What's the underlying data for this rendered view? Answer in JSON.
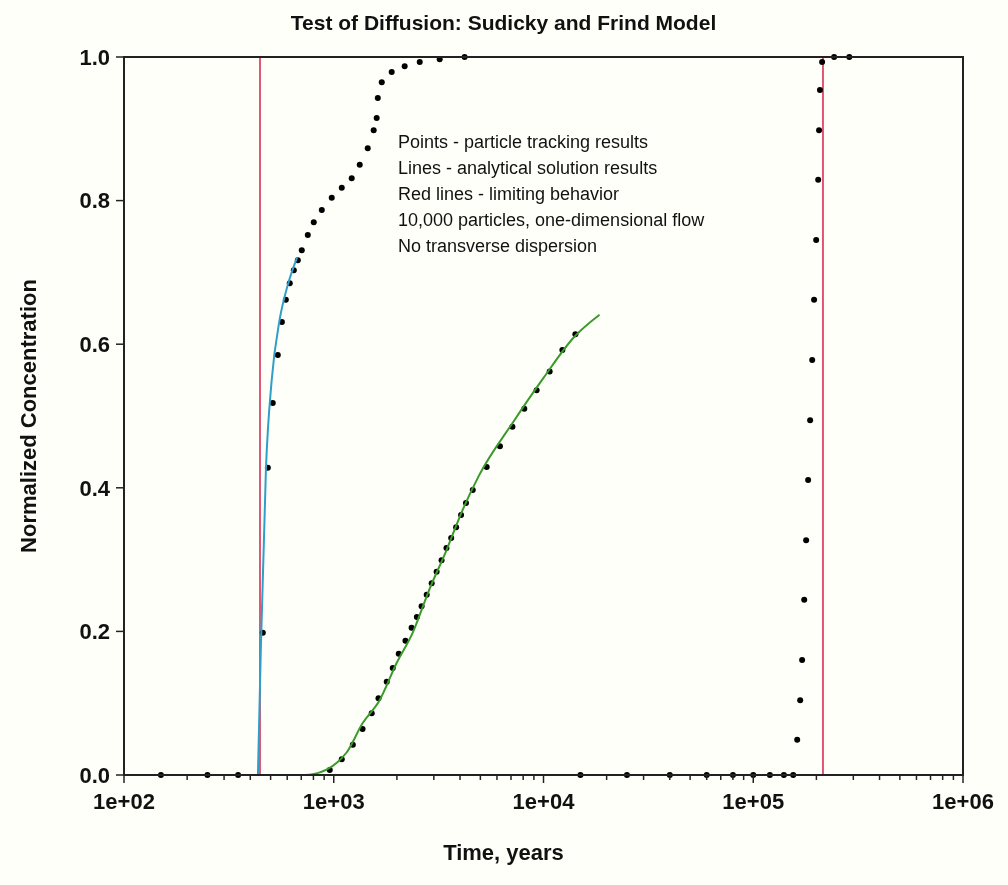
{
  "chart_data": {
    "type": "scatter",
    "title": "Test of Diffusion: Sudicky and Frind Model",
    "xlabel": "Time, years",
    "ylabel": "Normalized Concentration",
    "log": "x",
    "grid": false,
    "marker": "circle",
    "xlim": [
      100,
      1000000
    ],
    "ylim": [
      0,
      1
    ],
    "xticks": [
      {
        "value": 100,
        "label": "1e+02"
      },
      {
        "value": 200,
        "label": null
      },
      {
        "value": 300,
        "label": null
      },
      {
        "value": 400,
        "label": null
      },
      {
        "value": 500,
        "label": null
      },
      {
        "value": 600,
        "label": null
      },
      {
        "value": 700,
        "label": null
      },
      {
        "value": 800,
        "label": null
      },
      {
        "value": 900,
        "label": null
      },
      {
        "value": 1000,
        "label": "1e+03"
      },
      {
        "value": 2000,
        "label": null
      },
      {
        "value": 3000,
        "label": null
      },
      {
        "value": 4000,
        "label": null
      },
      {
        "value": 5000,
        "label": null
      },
      {
        "value": 6000,
        "label": null
      },
      {
        "value": 7000,
        "label": null
      },
      {
        "value": 8000,
        "label": null
      },
      {
        "value": 9000,
        "label": null
      },
      {
        "value": 10000,
        "label": "1e+04"
      },
      {
        "value": 20000,
        "label": null
      },
      {
        "value": 30000,
        "label": null
      },
      {
        "value": 40000,
        "label": null
      },
      {
        "value": 50000,
        "label": null
      },
      {
        "value": 60000,
        "label": null
      },
      {
        "value": 70000,
        "label": null
      },
      {
        "value": 80000,
        "label": null
      },
      {
        "value": 90000,
        "label": null
      },
      {
        "value": 100000,
        "label": "1e+05"
      },
      {
        "value": 200000,
        "label": null
      },
      {
        "value": 300000,
        "label": null
      },
      {
        "value": 400000,
        "label": null
      },
      {
        "value": 500000,
        "label": null
      },
      {
        "value": 600000,
        "label": null
      },
      {
        "value": 700000,
        "label": null
      },
      {
        "value": 800000,
        "label": null
      },
      {
        "value": 900000,
        "label": null
      },
      {
        "value": 1000000,
        "label": "1e+06"
      }
    ],
    "yticks": [
      {
        "value": 0,
        "label": "0.0"
      },
      {
        "value": 0.2,
        "label": "0.2"
      },
      {
        "value": 0.4,
        "label": "0.4"
      },
      {
        "value": 0.6,
        "label": "0.6"
      },
      {
        "value": 0.8,
        "label": "0.8"
      },
      {
        "value": 1,
        "label": "1.0"
      }
    ],
    "series": [
      {
        "color": "#000000",
        "x": [
          150,
          250,
          350,
          459,
          485,
          512,
          541,
          566,
          591,
          617,
          645,
          674,
          704,
          752,
          803,
          877,
          978,
          1092,
          1218,
          1330,
          1452,
          1550,
          1602,
          1622,
          1694,
          1889,
          2178,
          2570,
          3199,
          4207
        ],
        "values": [
          0,
          0,
          0,
          0.198,
          0.428,
          0.518,
          0.585,
          0.631,
          0.662,
          0.685,
          0.703,
          0.717,
          0.731,
          0.752,
          0.77,
          0.787,
          0.804,
          0.818,
          0.831,
          0.85,
          0.873,
          0.898,
          0.915,
          0.943,
          0.965,
          0.979,
          0.987,
          0.993,
          0.997,
          1
        ]
      },
      {
        "color": "#000000",
        "x": [
          957,
          1092,
          1233,
          1372,
          1517,
          1634,
          1789,
          1911,
          2041,
          2197,
          2350,
          2490,
          2623,
          2774,
          2930,
          3093,
          3266,
          3446,
          3630,
          3832,
          4046,
          4270,
          4600,
          5360,
          6200,
          7110,
          8100,
          9270,
          10700,
          12300,
          14190
        ],
        "values": [
          0.007,
          0.022,
          0.042,
          0.064,
          0.086,
          0.107,
          0.13,
          0.149,
          0.169,
          0.187,
          0.205,
          0.22,
          0.235,
          0.251,
          0.267,
          0.283,
          0.299,
          0.316,
          0.33,
          0.345,
          0.362,
          0.379,
          0.397,
          0.429,
          0.458,
          0.485,
          0.51,
          0.536,
          0.562,
          0.592,
          0.614
        ]
      },
      {
        "color": "#000000",
        "x": [
          15000,
          25000,
          40000,
          60000,
          80000,
          100000,
          120000,
          140000,
          155000,
          162000,
          167400,
          171000,
          175000,
          178700,
          182700,
          186700,
          191000,
          195000,
          199500,
          204000,
          206000,
          208000,
          213000,
          243000,
          287000
        ],
        "values": [
          0,
          0,
          0,
          0,
          0,
          0,
          0,
          0,
          0,
          0.049,
          0.104,
          0.16,
          0.244,
          0.327,
          0.411,
          0.494,
          0.578,
          0.662,
          0.745,
          0.829,
          0.898,
          0.954,
          0.993,
          1,
          1
        ]
      },
      {
        "type": "line",
        "marker": "none",
        "color": "#2f9fc8",
        "x": [
          435,
          449,
          475,
          506,
          552,
          603,
          669
        ],
        "values": [
          0,
          0.174,
          0.426,
          0.55,
          0.634,
          0.682,
          0.721
        ]
      },
      {
        "type": "line",
        "marker": "none",
        "color": "#3a9a2a",
        "x": [
          728,
          794,
          1149,
          1372,
          1654,
          1994,
          2377,
          2852,
          3446,
          4112,
          4944,
          7110,
          10000,
          14000,
          18500
        ],
        "values": [
          0,
          0.001,
          0.031,
          0.072,
          0.104,
          0.156,
          0.198,
          0.258,
          0.313,
          0.369,
          0.418,
          0.49,
          0.553,
          0.61,
          0.641
        ]
      }
    ],
    "ref_lines": [
      {
        "axis": "x",
        "value": 445,
        "color": "#d8204a"
      },
      {
        "axis": "x",
        "value": 215000,
        "color": "#d8204a"
      }
    ],
    "annotations": [
      "Points - particle tracking results",
      "Lines - analytical solution results",
      "Red lines - limiting behavior",
      "10,000 particles, one-dimensional flow",
      "No transverse dispersion"
    ]
  }
}
